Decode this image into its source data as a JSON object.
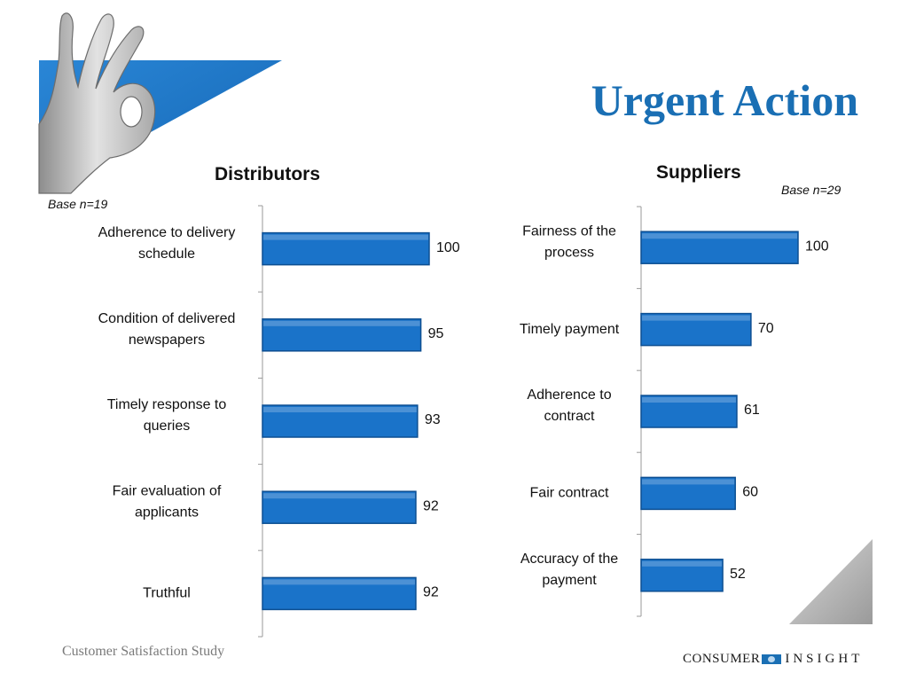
{
  "title": "Urgent Action",
  "footer": "Customer Satisfaction Study",
  "logo": {
    "left_word": "CONSUMER",
    "right_word": "INSIGHT",
    "mark": "eye-logo-icon"
  },
  "colors": {
    "bar": "#1a73c9",
    "bar_edge": "#0d4f92",
    "title": "#1a6fb4",
    "triangle": "#1a73c9"
  },
  "chart_data": [
    {
      "type": "bar",
      "orientation": "horizontal",
      "title": "Distributors",
      "note": "Base n=19",
      "categories": [
        "Adherence to delivery schedule",
        "Condition of delivered newspapers",
        "Timely response to queries",
        "Fair evaluation of applicants",
        "Truthful"
      ],
      "label_lines": [
        [
          "Adherence to delivery",
          "schedule"
        ],
        [
          "Condition of delivered",
          "newspapers"
        ],
        [
          "Timely response to",
          "queries"
        ],
        [
          "Fair evaluation of",
          "applicants"
        ],
        [
          "Truthful"
        ]
      ],
      "values": [
        100,
        95,
        93,
        92,
        92
      ],
      "xlim": [
        0,
        100
      ],
      "grid": false
    },
    {
      "type": "bar",
      "orientation": "horizontal",
      "title": "Suppliers",
      "note": "Base n=29",
      "categories": [
        "Fairness of the process",
        "Timely payment",
        "Adherence to contract",
        "Fair contract",
        "Accuracy of the payment"
      ],
      "label_lines": [
        [
          "Fairness of the",
          "process"
        ],
        [
          "Timely payment"
        ],
        [
          "Adherence to",
          "contract"
        ],
        [
          "Fair contract"
        ],
        [
          "Accuracy of the",
          "payment"
        ]
      ],
      "values": [
        100,
        70,
        61,
        60,
        52
      ],
      "xlim": [
        0,
        100
      ],
      "grid": false
    }
  ]
}
